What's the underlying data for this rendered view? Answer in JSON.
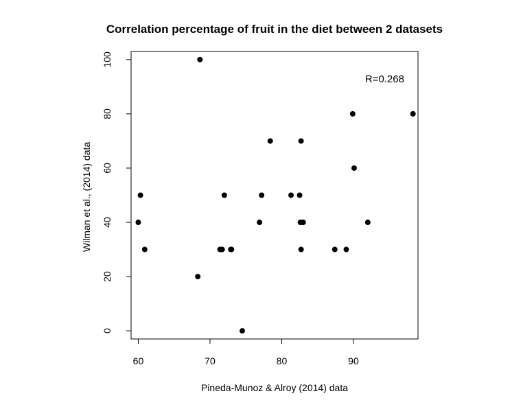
{
  "chart_data": {
    "type": "scatter",
    "title": "Correlation percentage of fruit in the diet between 2 datasets",
    "xlabel": "Pineda-Munoz & Alroy (2014) data",
    "ylabel": "Wilman et al., (2014) data",
    "xlim": [
      59,
      99
    ],
    "ylim": [
      -3,
      103
    ],
    "x_ticks": [
      60,
      70,
      80,
      90
    ],
    "y_ticks": [
      0,
      20,
      40,
      60,
      80,
      100
    ],
    "grid": false,
    "annotation": {
      "text": "R=0.268"
    },
    "marker_color": "#000000",
    "series": [
      {
        "points": [
          {
            "x": 60.0,
            "y": 40
          },
          {
            "x": 60.3,
            "y": 50
          },
          {
            "x": 60.9,
            "y": 30
          },
          {
            "x": 68.3,
            "y": 20
          },
          {
            "x": 68.6,
            "y": 100
          },
          {
            "x": 71.4,
            "y": 30
          },
          {
            "x": 71.7,
            "y": 30
          },
          {
            "x": 72.0,
            "y": 50
          },
          {
            "x": 72.9,
            "y": 30
          },
          {
            "x": 73.0,
            "y": 30
          },
          {
            "x": 74.5,
            "y": 0
          },
          {
            "x": 76.9,
            "y": 40
          },
          {
            "x": 77.2,
            "y": 50
          },
          {
            "x": 78.4,
            "y": 70
          },
          {
            "x": 81.3,
            "y": 50
          },
          {
            "x": 82.5,
            "y": 50
          },
          {
            "x": 82.6,
            "y": 40
          },
          {
            "x": 82.7,
            "y": 70
          },
          {
            "x": 82.7,
            "y": 30
          },
          {
            "x": 82.9,
            "y": 40
          },
          {
            "x": 83.0,
            "y": 40
          },
          {
            "x": 87.4,
            "y": 30
          },
          {
            "x": 89.0,
            "y": 30
          },
          {
            "x": 89.9,
            "y": 80
          },
          {
            "x": 90.1,
            "y": 60
          },
          {
            "x": 92.0,
            "y": 40
          },
          {
            "x": 98.3,
            "y": 80
          }
        ]
      }
    ]
  }
}
